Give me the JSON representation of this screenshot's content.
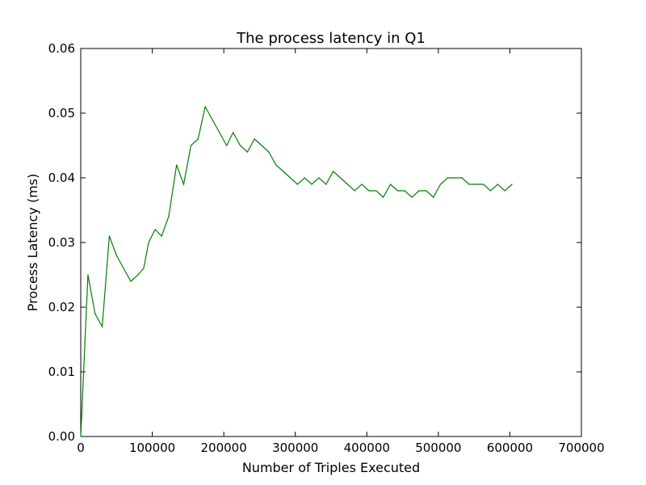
{
  "chart_data": {
    "type": "line",
    "title": "The process latency in Q1",
    "xlabel": "Number of Triples Executed",
    "ylabel": "Process Latency (ms)",
    "xlim": [
      0,
      700000
    ],
    "ylim": [
      0,
      0.06
    ],
    "xticks": [
      0,
      100000,
      200000,
      300000,
      400000,
      500000,
      600000,
      700000
    ],
    "xtick_labels": [
      "0",
      "100000",
      "200000",
      "300000",
      "400000",
      "500000",
      "600000",
      "700000"
    ],
    "yticks": [
      0,
      0.01,
      0.02,
      0.03,
      0.04,
      0.05,
      0.06
    ],
    "ytick_labels": [
      "0.00",
      "0.01",
      "0.02",
      "0.03",
      "0.04",
      "0.05",
      "0.06"
    ],
    "grid": false,
    "series": [
      {
        "color": "#008000",
        "x": [
          0,
          10000,
          20000,
          30000,
          40000,
          50000,
          60000,
          70000,
          80000,
          88000,
          95000,
          104000,
          113000,
          123000,
          134000,
          144000,
          154000,
          164000,
          174000,
          184000,
          194000,
          204000,
          213000,
          223000,
          233000,
          243000,
          253000,
          263000,
          273000,
          283000,
          293000,
          303000,
          313000,
          323000,
          333000,
          343000,
          353000,
          363000,
          373000,
          383000,
          393000,
          403000,
          413000,
          423000,
          433000,
          443000,
          453000,
          463000,
          473000,
          483000,
          493000,
          503000,
          513000,
          523000,
          533000,
          543000,
          553000,
          563000,
          573000,
          583000,
          593000,
          603000
        ],
        "y": [
          0.0,
          0.025,
          0.019,
          0.017,
          0.031,
          0.028,
          0.026,
          0.024,
          0.025,
          0.026,
          0.03,
          0.032,
          0.031,
          0.034,
          0.042,
          0.039,
          0.045,
          0.046,
          0.051,
          0.049,
          0.047,
          0.045,
          0.047,
          0.045,
          0.044,
          0.046,
          0.045,
          0.044,
          0.042,
          0.041,
          0.04,
          0.039,
          0.04,
          0.039,
          0.04,
          0.039,
          0.041,
          0.04,
          0.039,
          0.038,
          0.039,
          0.038,
          0.038,
          0.037,
          0.039,
          0.038,
          0.038,
          0.037,
          0.038,
          0.038,
          0.037,
          0.039,
          0.04,
          0.04,
          0.04,
          0.039,
          0.039,
          0.039,
          0.038,
          0.039,
          0.038,
          0.039
        ]
      }
    ]
  }
}
